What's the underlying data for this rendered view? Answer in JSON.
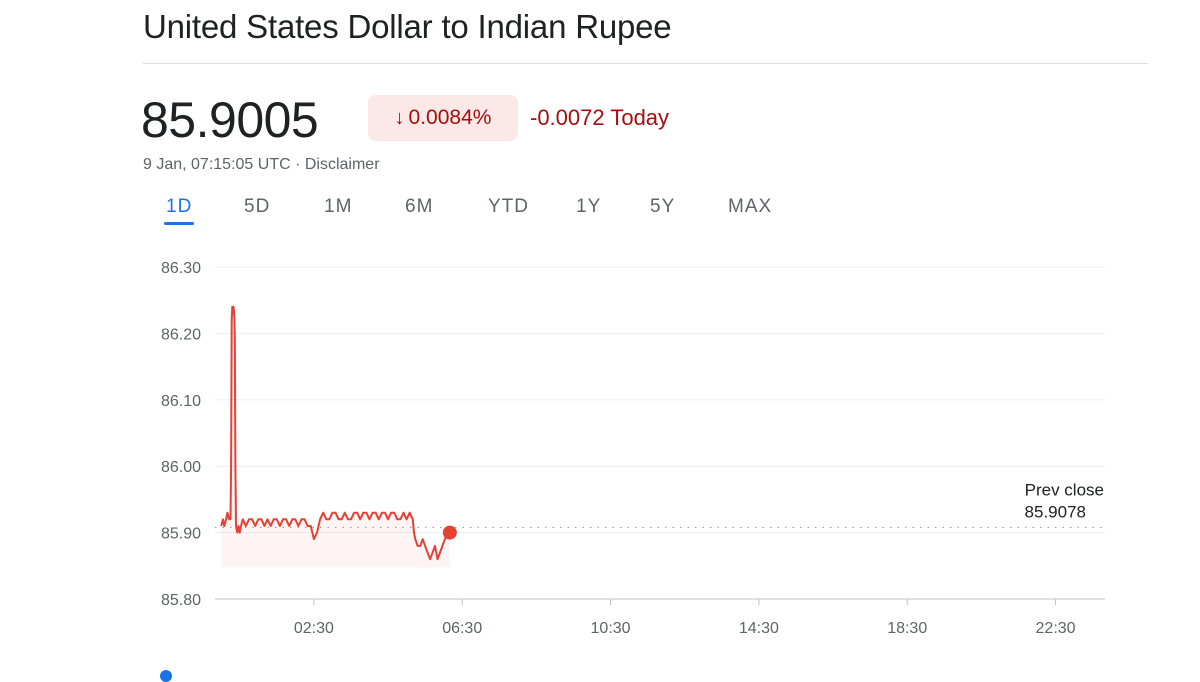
{
  "title": "United States Dollar to Indian Rupee",
  "quote": {
    "price": "85.9005",
    "change_pct": "0.0084%",
    "change_arrow_icon": "arrow-down-icon",
    "change_today": "-0.0072 Today",
    "timestamp": "9 Jan, 07:15:05 UTC",
    "separator": " · ",
    "disclaimer": "Disclaimer"
  },
  "tabs": [
    {
      "label": "1D",
      "active": true
    },
    {
      "label": "5D",
      "active": false
    },
    {
      "label": "1M",
      "active": false
    },
    {
      "label": "6M",
      "active": false
    },
    {
      "label": "YTD",
      "active": false
    },
    {
      "label": "1Y",
      "active": false
    },
    {
      "label": "5Y",
      "active": false
    },
    {
      "label": "MAX",
      "active": false
    }
  ],
  "colors": {
    "negative": "#a50e0e",
    "negative_bg": "#fce8e6",
    "line": "#e34234",
    "accent": "#1a73e8",
    "grid": "#eeeeee"
  },
  "chart_data": {
    "type": "line",
    "title": "",
    "xlabel": "",
    "ylabel": "",
    "ylim": [
      85.8,
      86.3
    ],
    "y_ticks": [
      "86.30",
      "86.20",
      "86.10",
      "86.00",
      "85.90",
      "85.80"
    ],
    "x_ticks": [
      "02:30",
      "06:30",
      "10:30",
      "14:30",
      "18:30",
      "22:30"
    ],
    "x_range_minutes": [
      -10,
      1430
    ],
    "grid": true,
    "prev_close": {
      "label": "Prev close",
      "value": "85.9078"
    },
    "series": [
      {
        "values": [
          [
            0,
            85.91
          ],
          [
            3,
            85.92
          ],
          [
            5,
            85.91
          ],
          [
            8,
            85.92
          ],
          [
            10,
            85.93
          ],
          [
            13,
            85.92
          ],
          [
            15,
            85.92
          ],
          [
            16,
            86.0
          ],
          [
            17,
            86.22
          ],
          [
            18,
            86.24
          ],
          [
            19,
            86.23
          ],
          [
            20,
            86.24
          ],
          [
            21,
            86.23
          ],
          [
            22,
            86.2
          ],
          [
            23,
            86.0
          ],
          [
            24,
            85.91
          ],
          [
            26,
            85.9
          ],
          [
            28,
            85.91
          ],
          [
            30,
            85.9
          ],
          [
            32,
            85.91
          ],
          [
            35,
            85.92
          ],
          [
            40,
            85.91
          ],
          [
            45,
            85.92
          ],
          [
            50,
            85.92
          ],
          [
            55,
            85.91
          ],
          [
            60,
            85.92
          ],
          [
            65,
            85.92
          ],
          [
            70,
            85.91
          ],
          [
            75,
            85.92
          ],
          [
            80,
            85.91
          ],
          [
            85,
            85.92
          ],
          [
            90,
            85.92
          ],
          [
            95,
            85.91
          ],
          [
            100,
            85.92
          ],
          [
            105,
            85.92
          ],
          [
            110,
            85.91
          ],
          [
            115,
            85.92
          ],
          [
            120,
            85.92
          ],
          [
            125,
            85.91
          ],
          [
            130,
            85.92
          ],
          [
            135,
            85.92
          ],
          [
            140,
            85.91
          ],
          [
            145,
            85.91
          ],
          [
            150,
            85.89
          ],
          [
            155,
            85.9
          ],
          [
            160,
            85.92
          ],
          [
            165,
            85.93
          ],
          [
            170,
            85.92
          ],
          [
            175,
            85.92
          ],
          [
            180,
            85.93
          ],
          [
            185,
            85.93
          ],
          [
            190,
            85.92
          ],
          [
            195,
            85.92
          ],
          [
            200,
            85.93
          ],
          [
            205,
            85.92
          ],
          [
            210,
            85.92
          ],
          [
            215,
            85.93
          ],
          [
            220,
            85.93
          ],
          [
            225,
            85.92
          ],
          [
            230,
            85.93
          ],
          [
            235,
            85.93
          ],
          [
            240,
            85.92
          ],
          [
            245,
            85.93
          ],
          [
            250,
            85.93
          ],
          [
            255,
            85.92
          ],
          [
            260,
            85.93
          ],
          [
            265,
            85.93
          ],
          [
            270,
            85.92
          ],
          [
            275,
            85.93
          ],
          [
            280,
            85.93
          ],
          [
            285,
            85.92
          ],
          [
            290,
            85.92
          ],
          [
            295,
            85.93
          ],
          [
            300,
            85.92
          ],
          [
            305,
            85.93
          ],
          [
            310,
            85.92
          ],
          [
            312,
            85.9
          ],
          [
            314,
            85.89
          ],
          [
            318,
            85.88
          ],
          [
            322,
            85.88
          ],
          [
            326,
            85.89
          ],
          [
            330,
            85.88
          ],
          [
            334,
            85.87
          ],
          [
            338,
            85.86
          ],
          [
            342,
            85.87
          ],
          [
            346,
            85.88
          ],
          [
            350,
            85.86
          ],
          [
            354,
            85.87
          ],
          [
            358,
            85.88
          ],
          [
            362,
            85.89
          ],
          [
            366,
            85.9
          ],
          [
            370,
            85.9
          ]
        ]
      }
    ]
  }
}
